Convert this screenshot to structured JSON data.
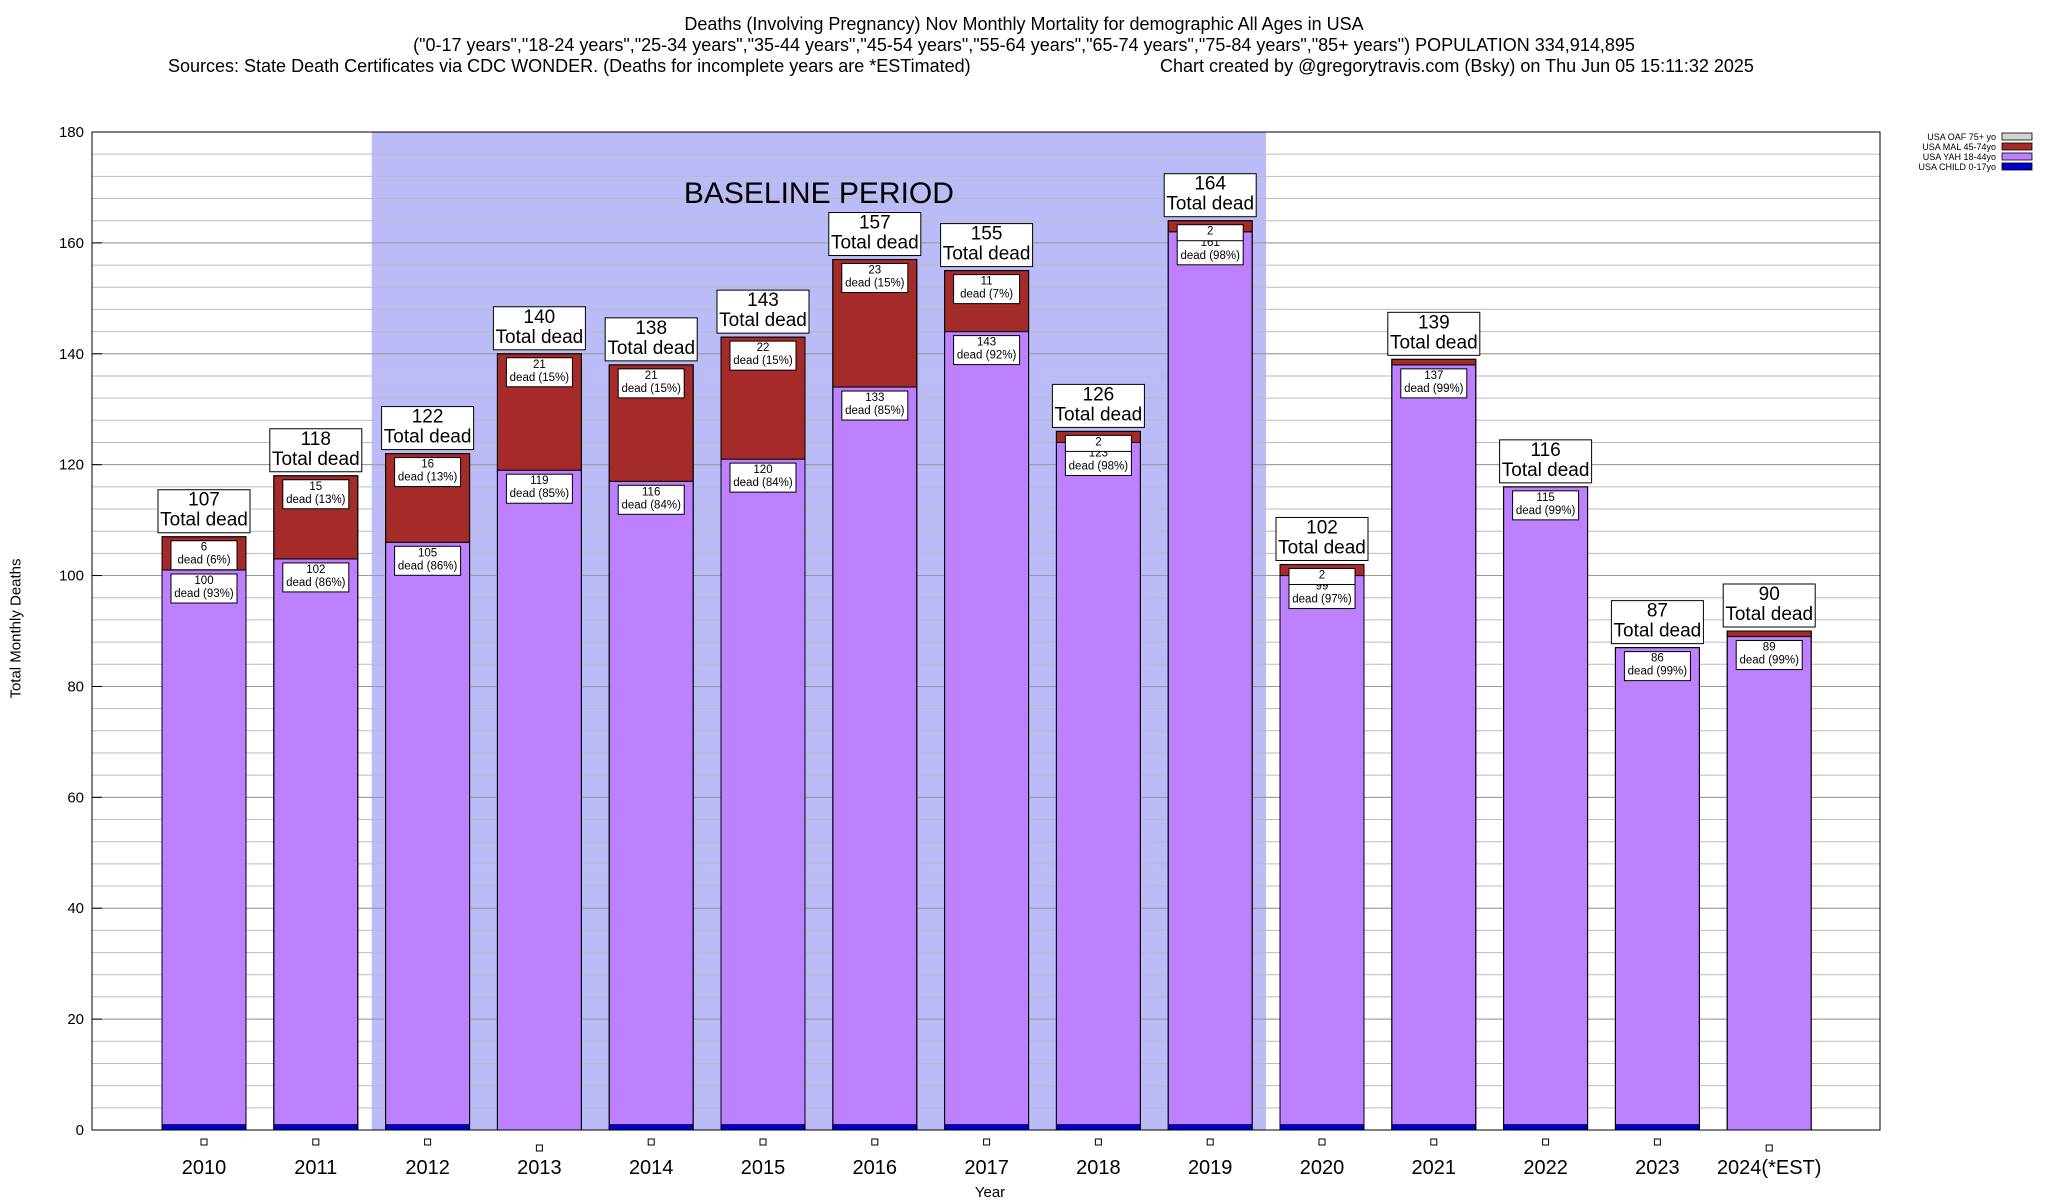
{
  "header": {
    "title": "Deaths (Involving Pregnancy) Nov Monthly Mortality for demographic All Ages in USA",
    "subtitle": "(\"0-17 years\",\"18-24 years\",\"25-34 years\",\"35-44 years\",\"45-54 years\",\"55-64 years\",\"65-74 years\",\"75-84 years\",\"85+ years\") POPULATION 334,914,895",
    "sources": "Sources: State Death Certificates via CDC WONDER. (Deaths for incomplete years are *ESTimated)",
    "credit": "Chart created by @gregorytravis.com (Bsky) on Thu Jun 05 15:11:32 2025"
  },
  "colors": {
    "background": "#ffffff",
    "baseline_shade": "#bbbbf8",
    "yah": "#bd80ff",
    "mal": "#a52a2a",
    "oaf": "#d3d3d3",
    "child": "#0000cc",
    "grid": "#bbbbbb"
  },
  "chart_data": {
    "type": "bar",
    "stacked": true,
    "xlabel": "Year",
    "ylabel": "Total Monthly Deaths",
    "ylim": [
      0,
      180
    ],
    "yticks": [
      0,
      20,
      40,
      60,
      80,
      100,
      120,
      140,
      160,
      180
    ],
    "grid": true,
    "legend_position": "top-right",
    "annotation": "BASELINE PERIOD",
    "baseline_range": [
      "2012",
      "2019"
    ],
    "categories": [
      "2010",
      "2011",
      "2012",
      "2013",
      "2014",
      "2015",
      "2016",
      "2017",
      "2018",
      "2019",
      "2020",
      "2021",
      "2022",
      "2023",
      "2024(*EST)"
    ],
    "totals": [
      107,
      118,
      122,
      140,
      138,
      143,
      157,
      155,
      126,
      164,
      102,
      139,
      116,
      87,
      90
    ],
    "total_label": "Total dead",
    "series": [
      {
        "name": "USA CHILD 0-17yo",
        "values": [
          1,
          1,
          1,
          0,
          1,
          1,
          1,
          1,
          1,
          1,
          1,
          1,
          1,
          1,
          0
        ]
      },
      {
        "name": "USA YAH 18-44yo",
        "values": [
          100,
          102,
          105,
          119,
          116,
          120,
          133,
          143,
          123,
          161,
          99,
          137,
          115,
          86,
          89
        ],
        "labels": [
          "100\ndead (93%)",
          "102\ndead (86%)",
          "105\ndead (86%)",
          "119\ndead (85%)",
          "116\ndead (84%)",
          "120\ndead (84%)",
          "133\ndead (85%)",
          "143\ndead (92%)",
          "123\ndead (98%)",
          "161\ndead (98%)",
          "99\ndead (97%)",
          "137\ndead (99%)",
          "115\ndead (99%)",
          "86\ndead (99%)",
          "89\ndead (99%)"
        ]
      },
      {
        "name": "USA MAL 45-74yo",
        "values": [
          6,
          15,
          16,
          21,
          21,
          22,
          23,
          11,
          2,
          2,
          2,
          1,
          0,
          0,
          1
        ],
        "labels": [
          "6\ndead (6%)",
          "15\ndead (13%)",
          "16\ndead (13%)",
          "21\ndead (15%)",
          "21\ndead (15%)",
          "22\ndead (15%)",
          "23\ndead (15%)",
          "11\ndead (7%)",
          "2",
          "2",
          "2",
          "",
          "",
          "",
          ""
        ]
      },
      {
        "name": "USA OAF 75+ yo",
        "values": [
          0,
          0,
          0,
          0,
          0,
          0,
          0,
          0,
          0,
          0,
          0,
          0,
          0,
          0,
          0
        ]
      }
    ]
  }
}
